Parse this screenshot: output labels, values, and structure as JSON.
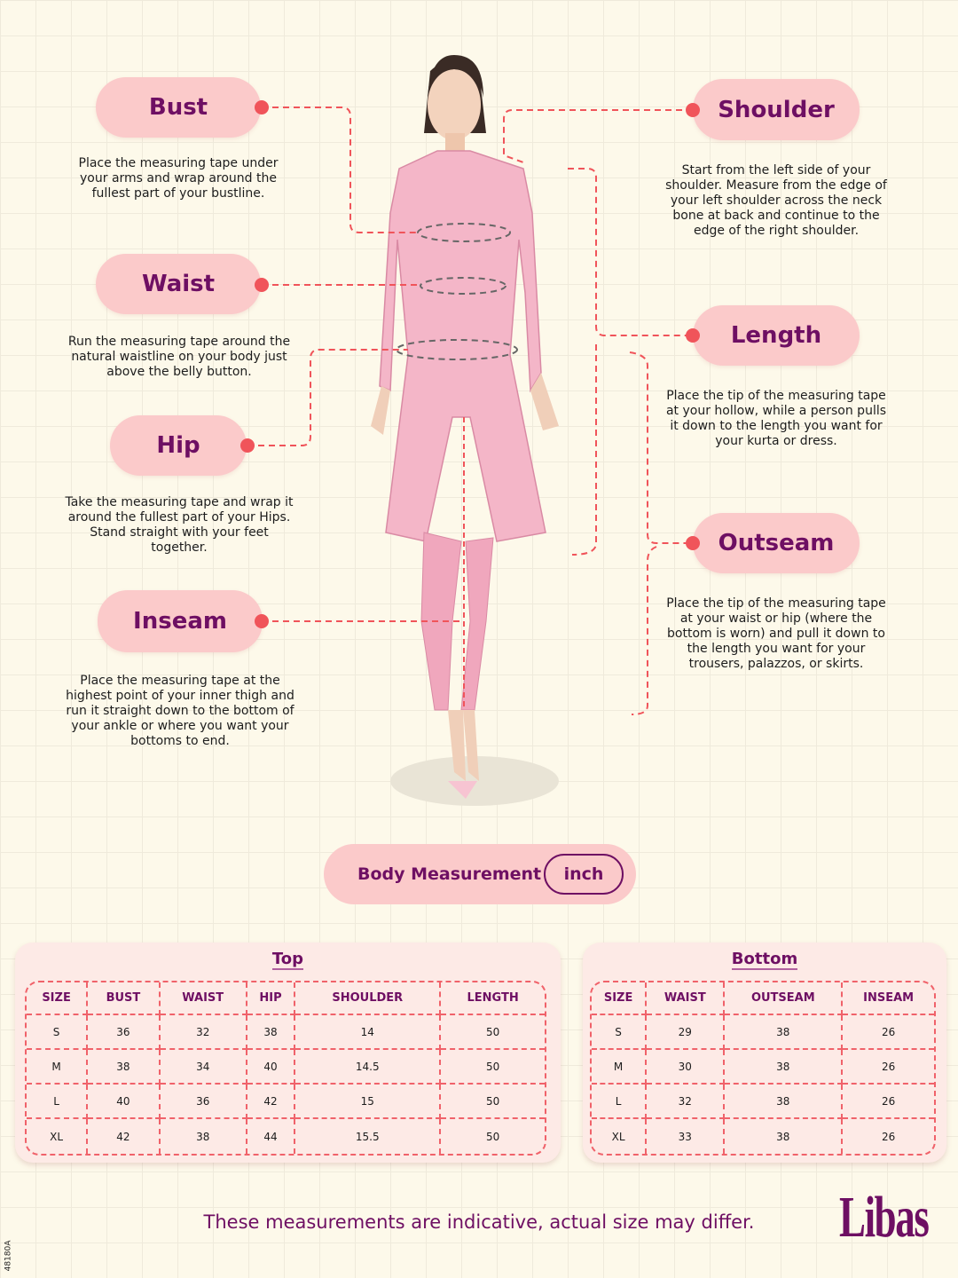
{
  "labels": {
    "bust": {
      "title": "Bust",
      "desc": "Place the measuring tape under your arms and wrap around the fullest part of your bustline."
    },
    "waist": {
      "title": "Waist",
      "desc": "Run the measuring tape around the natural waistline on your body just above the belly button."
    },
    "hip": {
      "title": "Hip",
      "desc": "Take the measuring tape and wrap it around the fullest part of your Hips. Stand straight with your feet together."
    },
    "inseam": {
      "title": "Inseam",
      "desc": "Place the measuring tape at the highest point of your inner thigh and run it straight down to the bottom of your ankle or where you want your bottoms to end."
    },
    "shoulder": {
      "title": "Shoulder",
      "desc": "Start from the left side of your shoulder. Measure from the edge of your left shoulder across the neck bone at back and continue to the edge of the right shoulder."
    },
    "length": {
      "title": "Length",
      "desc": "Place the tip of the measuring tape at your hollow, while a person pulls it down to the length you want for your kurta or dress."
    },
    "outseam": {
      "title": "Outseam",
      "desc": "Place the tip of the measuring tape at your waist or hip (where the bottom is worn) and pull it down to the length you want for your trousers, palazzos, or skirts."
    }
  },
  "body_measurement": {
    "label": "Body Measurement",
    "unit": "inch"
  },
  "top_table": {
    "title": "Top",
    "headers": [
      "SIZE",
      "BUST",
      "WAIST",
      "HIP",
      "SHOULDER",
      "LENGTH"
    ],
    "rows": [
      [
        "S",
        "36",
        "32",
        "38",
        "14",
        "50"
      ],
      [
        "M",
        "38",
        "34",
        "40",
        "14.5",
        "50"
      ],
      [
        "L",
        "40",
        "36",
        "42",
        "15",
        "50"
      ],
      [
        "XL",
        "42",
        "38",
        "44",
        "15.5",
        "50"
      ]
    ]
  },
  "bottom_table": {
    "title": "Bottom",
    "headers": [
      "SIZE",
      "WAIST",
      "OUTSEAM",
      "INSEAM"
    ],
    "rows": [
      [
        "S",
        "29",
        "38",
        "26"
      ],
      [
        "M",
        "30",
        "38",
        "26"
      ],
      [
        "L",
        "32",
        "38",
        "26"
      ],
      [
        "XL",
        "33",
        "38",
        "26"
      ]
    ]
  },
  "footer_note": "These measurements are indicative, actual size may differ.",
  "brand": "Libas",
  "code": "48180A",
  "colors": {
    "accent": "#6e0f63",
    "pill": "#fbcaca",
    "dash": "#f0545a",
    "background": "#fdf9ea"
  }
}
